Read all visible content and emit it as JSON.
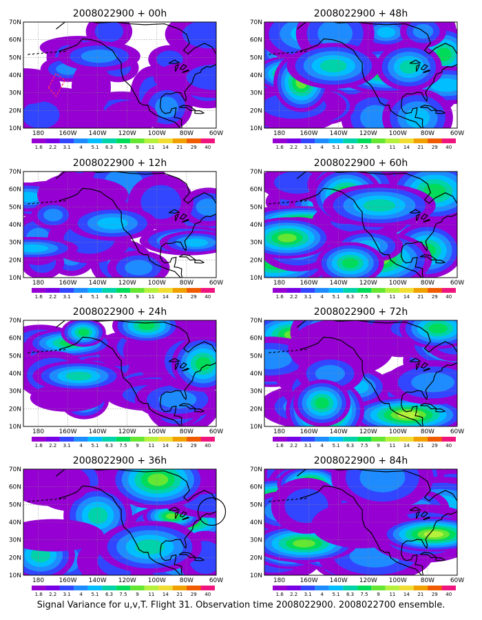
{
  "figure": {
    "caption": "Signal Variance for u,v,T. Flight 31. Observation time 2008022900. 2008022700 ensemble.",
    "lat_ticks": [
      "70N",
      "60N",
      "50N",
      "40N",
      "30N",
      "20N",
      "10N"
    ],
    "lon_ticks": [
      "180",
      "160W",
      "140W",
      "120W",
      "100W",
      "80W",
      "60W"
    ],
    "colorbar_levels": [
      "1.6",
      "2.2",
      "3.1",
      "4",
      "5.1",
      "6.3",
      "7.5",
      "9",
      "11",
      "14",
      "21",
      "29",
      "40"
    ],
    "colorbar_colors": [
      "#9600d2",
      "#7800e6",
      "#3246ff",
      "#1e8cff",
      "#00beff",
      "#00d2aa",
      "#00dc5a",
      "#64e632",
      "#b4f03c",
      "#f0dc32",
      "#f0a000",
      "#f05a00",
      "#f0147f"
    ],
    "map_extent": {
      "lon": [
        -190,
        -60
      ],
      "lat": [
        10,
        70
      ]
    },
    "panels": [
      {
        "title": "2008022900 + 00h",
        "lead_hours": 0,
        "intensity": 0.15
      },
      {
        "title": "2008022900 + 48h",
        "lead_hours": 48,
        "intensity": 0.55
      },
      {
        "title": "2008022900 + 12h",
        "lead_hours": 12,
        "intensity": 0.28
      },
      {
        "title": "2008022900 + 60h",
        "lead_hours": 60,
        "intensity": 0.65
      },
      {
        "title": "2008022900 + 24h",
        "lead_hours": 24,
        "intensity": 0.4
      },
      {
        "title": "2008022900 + 72h",
        "lead_hours": 72,
        "intensity": 0.75
      },
      {
        "title": "2008022900 + 36h",
        "lead_hours": 36,
        "intensity": 0.5
      },
      {
        "title": "2008022900 + 84h",
        "lead_hours": 84,
        "intensity": 0.85
      }
    ]
  }
}
